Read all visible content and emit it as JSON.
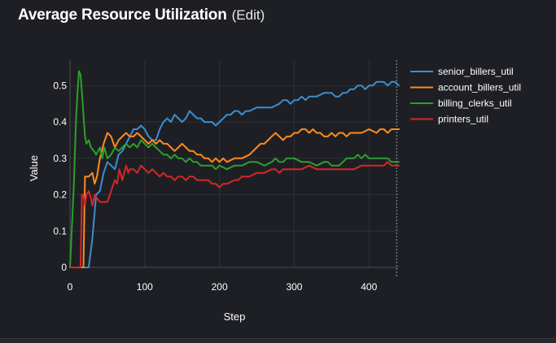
{
  "header": {
    "title": "Average Resource Utilization",
    "edit_label": "(Edit)"
  },
  "chart_data": {
    "type": "line",
    "title": "Average Resource Utilization",
    "xlabel": "Step",
    "ylabel": "Value",
    "xlim": [
      0,
      440
    ],
    "ylim": [
      0,
      0.57
    ],
    "xticks": [
      0,
      100,
      200,
      300,
      400
    ],
    "yticks": [
      0,
      0.1,
      0.2,
      0.3,
      0.4,
      0.5
    ],
    "ytick_labels": [
      "0",
      "0.1",
      "0.2",
      "0.3",
      "0.4",
      "0.5"
    ],
    "grid": true,
    "legend_position": "right",
    "hover_step": 437,
    "series": [
      {
        "name": "senior_billers_util",
        "color": "#3b8ed0",
        "points": [
          [
            0,
            0
          ],
          [
            25,
            0
          ],
          [
            30,
            0.08
          ],
          [
            35,
            0.2
          ],
          [
            40,
            0.21
          ],
          [
            45,
            0.26
          ],
          [
            50,
            0.29
          ],
          [
            55,
            0.28
          ],
          [
            60,
            0.27
          ],
          [
            65,
            0.31
          ],
          [
            70,
            0.32
          ],
          [
            75,
            0.34
          ],
          [
            80,
            0.36
          ],
          [
            85,
            0.38
          ],
          [
            90,
            0.38
          ],
          [
            95,
            0.39
          ],
          [
            100,
            0.38
          ],
          [
            105,
            0.36
          ],
          [
            110,
            0.35
          ],
          [
            115,
            0.35
          ],
          [
            120,
            0.38
          ],
          [
            125,
            0.4
          ],
          [
            130,
            0.41
          ],
          [
            135,
            0.4
          ],
          [
            140,
            0.42
          ],
          [
            145,
            0.41
          ],
          [
            150,
            0.4
          ],
          [
            155,
            0.41
          ],
          [
            160,
            0.43
          ],
          [
            165,
            0.42
          ],
          [
            170,
            0.41
          ],
          [
            175,
            0.41
          ],
          [
            180,
            0.4
          ],
          [
            185,
            0.4
          ],
          [
            190,
            0.4
          ],
          [
            195,
            0.39
          ],
          [
            200,
            0.4
          ],
          [
            205,
            0.41
          ],
          [
            210,
            0.42
          ],
          [
            215,
            0.42
          ],
          [
            220,
            0.43
          ],
          [
            225,
            0.43
          ],
          [
            230,
            0.42
          ],
          [
            235,
            0.43
          ],
          [
            240,
            0.43
          ],
          [
            250,
            0.44
          ],
          [
            260,
            0.44
          ],
          [
            270,
            0.44
          ],
          [
            280,
            0.45
          ],
          [
            285,
            0.46
          ],
          [
            290,
            0.46
          ],
          [
            295,
            0.45
          ],
          [
            300,
            0.46
          ],
          [
            305,
            0.46
          ],
          [
            310,
            0.47
          ],
          [
            315,
            0.46
          ],
          [
            320,
            0.47
          ],
          [
            330,
            0.47
          ],
          [
            340,
            0.48
          ],
          [
            345,
            0.48
          ],
          [
            350,
            0.48
          ],
          [
            355,
            0.47
          ],
          [
            360,
            0.47
          ],
          [
            365,
            0.48
          ],
          [
            370,
            0.48
          ],
          [
            375,
            0.49
          ],
          [
            380,
            0.49
          ],
          [
            385,
            0.5
          ],
          [
            390,
            0.5
          ],
          [
            395,
            0.49
          ],
          [
            400,
            0.5
          ],
          [
            405,
            0.5
          ],
          [
            410,
            0.51
          ],
          [
            415,
            0.51
          ],
          [
            420,
            0.51
          ],
          [
            425,
            0.5
          ],
          [
            430,
            0.51
          ],
          [
            435,
            0.51
          ],
          [
            440,
            0.5
          ]
        ]
      },
      {
        "name": "account_billers_util",
        "color": "#ff8a1f",
        "points": [
          [
            0,
            0
          ],
          [
            18,
            0
          ],
          [
            20,
            0.25
          ],
          [
            25,
            0.25
          ],
          [
            30,
            0.26
          ],
          [
            33,
            0.23
          ],
          [
            36,
            0.25
          ],
          [
            40,
            0.3
          ],
          [
            45,
            0.34
          ],
          [
            50,
            0.37
          ],
          [
            55,
            0.36
          ],
          [
            60,
            0.33
          ],
          [
            65,
            0.35
          ],
          [
            70,
            0.36
          ],
          [
            75,
            0.37
          ],
          [
            80,
            0.36
          ],
          [
            85,
            0.36
          ],
          [
            90,
            0.37
          ],
          [
            95,
            0.36
          ],
          [
            100,
            0.35
          ],
          [
            105,
            0.34
          ],
          [
            110,
            0.35
          ],
          [
            115,
            0.34
          ],
          [
            120,
            0.35
          ],
          [
            125,
            0.34
          ],
          [
            130,
            0.34
          ],
          [
            135,
            0.33
          ],
          [
            140,
            0.32
          ],
          [
            145,
            0.33
          ],
          [
            150,
            0.34
          ],
          [
            155,
            0.33
          ],
          [
            160,
            0.32
          ],
          [
            165,
            0.32
          ],
          [
            170,
            0.31
          ],
          [
            175,
            0.31
          ],
          [
            180,
            0.3
          ],
          [
            185,
            0.3
          ],
          [
            190,
            0.29
          ],
          [
            195,
            0.3
          ],
          [
            200,
            0.29
          ],
          [
            205,
            0.3
          ],
          [
            210,
            0.29
          ],
          [
            220,
            0.3
          ],
          [
            230,
            0.3
          ],
          [
            240,
            0.31
          ],
          [
            250,
            0.33
          ],
          [
            255,
            0.34
          ],
          [
            260,
            0.34
          ],
          [
            270,
            0.36
          ],
          [
            275,
            0.37
          ],
          [
            280,
            0.36
          ],
          [
            285,
            0.35
          ],
          [
            290,
            0.36
          ],
          [
            295,
            0.36
          ],
          [
            300,
            0.37
          ],
          [
            305,
            0.37
          ],
          [
            310,
            0.38
          ],
          [
            315,
            0.38
          ],
          [
            320,
            0.37
          ],
          [
            325,
            0.38
          ],
          [
            330,
            0.37
          ],
          [
            335,
            0.37
          ],
          [
            340,
            0.36
          ],
          [
            345,
            0.36
          ],
          [
            350,
            0.37
          ],
          [
            355,
            0.36
          ],
          [
            360,
            0.37
          ],
          [
            365,
            0.37
          ],
          [
            370,
            0.36
          ],
          [
            375,
            0.37
          ],
          [
            380,
            0.37
          ],
          [
            390,
            0.37
          ],
          [
            400,
            0.38
          ],
          [
            410,
            0.37
          ],
          [
            415,
            0.38
          ],
          [
            420,
            0.38
          ],
          [
            425,
            0.37
          ],
          [
            430,
            0.38
          ],
          [
            440,
            0.38
          ]
        ]
      },
      {
        "name": "billing_clerks_util",
        "color": "#2ca02c",
        "points": [
          [
            0,
            0
          ],
          [
            5,
            0.22
          ],
          [
            8,
            0.4
          ],
          [
            10,
            0.48
          ],
          [
            12,
            0.54
          ],
          [
            14,
            0.53
          ],
          [
            16,
            0.48
          ],
          [
            18,
            0.42
          ],
          [
            20,
            0.36
          ],
          [
            22,
            0.34
          ],
          [
            25,
            0.35
          ],
          [
            28,
            0.33
          ],
          [
            32,
            0.32
          ],
          [
            35,
            0.31
          ],
          [
            40,
            0.33
          ],
          [
            43,
            0.3
          ],
          [
            46,
            0.33
          ],
          [
            50,
            0.3
          ],
          [
            55,
            0.31
          ],
          [
            60,
            0.33
          ],
          [
            65,
            0.32
          ],
          [
            70,
            0.33
          ],
          [
            75,
            0.34
          ],
          [
            80,
            0.33
          ],
          [
            85,
            0.34
          ],
          [
            90,
            0.33
          ],
          [
            95,
            0.35
          ],
          [
            100,
            0.34
          ],
          [
            105,
            0.33
          ],
          [
            110,
            0.34
          ],
          [
            115,
            0.33
          ],
          [
            120,
            0.32
          ],
          [
            125,
            0.31
          ],
          [
            130,
            0.31
          ],
          [
            135,
            0.3
          ],
          [
            140,
            0.31
          ],
          [
            145,
            0.3
          ],
          [
            150,
            0.3
          ],
          [
            155,
            0.29
          ],
          [
            160,
            0.3
          ],
          [
            165,
            0.29
          ],
          [
            170,
            0.29
          ],
          [
            175,
            0.28
          ],
          [
            180,
            0.28
          ],
          [
            185,
            0.28
          ],
          [
            190,
            0.28
          ],
          [
            195,
            0.27
          ],
          [
            200,
            0.28
          ],
          [
            210,
            0.27
          ],
          [
            220,
            0.28
          ],
          [
            230,
            0.28
          ],
          [
            240,
            0.29
          ],
          [
            250,
            0.29
          ],
          [
            260,
            0.28
          ],
          [
            270,
            0.29
          ],
          [
            275,
            0.3
          ],
          [
            280,
            0.29
          ],
          [
            285,
            0.29
          ],
          [
            290,
            0.3
          ],
          [
            300,
            0.3
          ],
          [
            310,
            0.29
          ],
          [
            320,
            0.29
          ],
          [
            330,
            0.28
          ],
          [
            340,
            0.29
          ],
          [
            345,
            0.29
          ],
          [
            350,
            0.28
          ],
          [
            360,
            0.28
          ],
          [
            365,
            0.29
          ],
          [
            370,
            0.3
          ],
          [
            375,
            0.3
          ],
          [
            380,
            0.3
          ],
          [
            385,
            0.31
          ],
          [
            390,
            0.3
          ],
          [
            395,
            0.31
          ],
          [
            400,
            0.3
          ],
          [
            405,
            0.3
          ],
          [
            410,
            0.3
          ],
          [
            420,
            0.3
          ],
          [
            425,
            0.3
          ],
          [
            430,
            0.29
          ],
          [
            440,
            0.29
          ]
        ]
      },
      {
        "name": "printers_util",
        "color": "#d62728",
        "points": [
          [
            0,
            0
          ],
          [
            14,
            0
          ],
          [
            16,
            0.2
          ],
          [
            18,
            0.2
          ],
          [
            20,
            0.17
          ],
          [
            22,
            0.2
          ],
          [
            25,
            0.21
          ],
          [
            28,
            0.19
          ],
          [
            30,
            0.17
          ],
          [
            33,
            0.2
          ],
          [
            36,
            0.19
          ],
          [
            40,
            0.18
          ],
          [
            45,
            0.18
          ],
          [
            50,
            0.18
          ],
          [
            55,
            0.21
          ],
          [
            60,
            0.24
          ],
          [
            63,
            0.23
          ],
          [
            66,
            0.27
          ],
          [
            70,
            0.24
          ],
          [
            75,
            0.28
          ],
          [
            78,
            0.26
          ],
          [
            80,
            0.27
          ],
          [
            85,
            0.27
          ],
          [
            90,
            0.26
          ],
          [
            95,
            0.28
          ],
          [
            100,
            0.27
          ],
          [
            105,
            0.26
          ],
          [
            110,
            0.27
          ],
          [
            115,
            0.26
          ],
          [
            120,
            0.25
          ],
          [
            125,
            0.26
          ],
          [
            130,
            0.25
          ],
          [
            135,
            0.25
          ],
          [
            140,
            0.24
          ],
          [
            145,
            0.25
          ],
          [
            150,
            0.25
          ],
          [
            155,
            0.24
          ],
          [
            160,
            0.25
          ],
          [
            165,
            0.25
          ],
          [
            170,
            0.24
          ],
          [
            175,
            0.24
          ],
          [
            180,
            0.24
          ],
          [
            185,
            0.24
          ],
          [
            190,
            0.23
          ],
          [
            195,
            0.23
          ],
          [
            200,
            0.22
          ],
          [
            205,
            0.23
          ],
          [
            210,
            0.23
          ],
          [
            220,
            0.24
          ],
          [
            225,
            0.24
          ],
          [
            230,
            0.25
          ],
          [
            240,
            0.25
          ],
          [
            250,
            0.26
          ],
          [
            260,
            0.26
          ],
          [
            270,
            0.27
          ],
          [
            275,
            0.27
          ],
          [
            280,
            0.26
          ],
          [
            285,
            0.27
          ],
          [
            290,
            0.27
          ],
          [
            300,
            0.27
          ],
          [
            310,
            0.27
          ],
          [
            320,
            0.28
          ],
          [
            330,
            0.27
          ],
          [
            340,
            0.27
          ],
          [
            350,
            0.27
          ],
          [
            360,
            0.27
          ],
          [
            370,
            0.27
          ],
          [
            380,
            0.27
          ],
          [
            390,
            0.28
          ],
          [
            395,
            0.28
          ],
          [
            400,
            0.28
          ],
          [
            410,
            0.28
          ],
          [
            420,
            0.28
          ],
          [
            425,
            0.29
          ],
          [
            430,
            0.28
          ],
          [
            440,
            0.28
          ]
        ]
      }
    ]
  }
}
